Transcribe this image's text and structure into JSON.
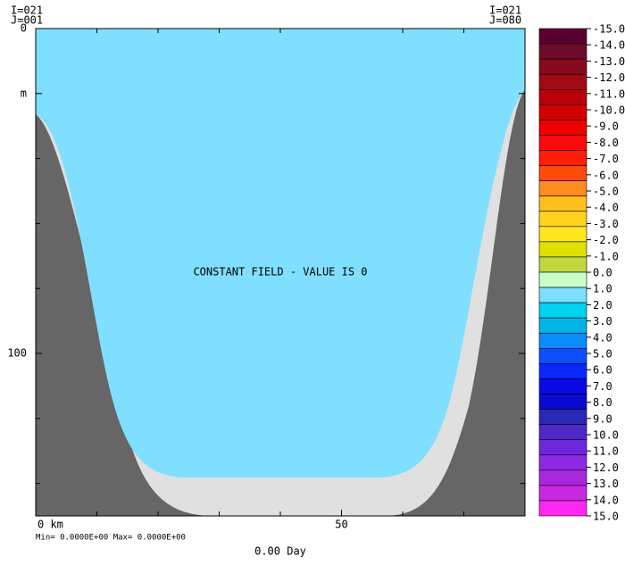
{
  "chart_data": {
    "type": "section",
    "corner_labels": {
      "left": [
        "I=021",
        "J=001"
      ],
      "right": [
        "I=021",
        "J=080"
      ]
    },
    "annotation": "CONSTANT FIELD - VALUE IS 0",
    "stats": "Min= 0.0000E+00  Max= 0.0000E+00",
    "time_label": "0.00 Day",
    "xlim": [
      0,
      80
    ],
    "xticks": [
      {
        "value": 0,
        "label": "0 km"
      },
      50
    ],
    "xminor_ticks": [
      10,
      20,
      30,
      40,
      60,
      70,
      80
    ],
    "ylim": [
      0,
      150
    ],
    "yticks": [
      0,
      {
        "value": 20,
        "label": "m"
      },
      100
    ],
    "yminor_ticks": [
      40,
      60,
      80,
      120,
      140
    ],
    "colorbar": {
      "levels": [
        {
          "value": -15,
          "label": "-15.0"
        },
        {
          "value": -14,
          "label": "-14.0"
        },
        {
          "value": -13,
          "label": "-13.0"
        },
        {
          "value": -12,
          "label": "-12.0"
        },
        {
          "value": -11,
          "label": "-11.0"
        },
        {
          "value": -10,
          "label": "-10.0"
        },
        {
          "value": -9,
          "label": "-9.0"
        },
        {
          "value": -8,
          "label": "-8.0"
        },
        {
          "value": -7,
          "label": "-7.0"
        },
        {
          "value": -6,
          "label": "-6.0"
        },
        {
          "value": -5,
          "label": "-5.0"
        },
        {
          "value": -4,
          "label": "-4.0"
        },
        {
          "value": -3,
          "label": "-3.0"
        },
        {
          "value": -2,
          "label": "-2.0"
        },
        {
          "value": -1,
          "label": "-1.0"
        },
        {
          "value": 0,
          "label": "0.0"
        },
        {
          "value": 1,
          "label": "1.0"
        },
        {
          "value": 2,
          "label": "2.0"
        },
        {
          "value": 3,
          "label": "3.0"
        },
        {
          "value": 4,
          "label": "4.0"
        },
        {
          "value": 5,
          "label": "5.0"
        },
        {
          "value": 6,
          "label": "6.0"
        },
        {
          "value": 7,
          "label": "7.0"
        },
        {
          "value": 8,
          "label": "8.0"
        },
        {
          "value": 9,
          "label": "9.0"
        },
        {
          "value": 10,
          "label": "10.0"
        },
        {
          "value": 11,
          "label": "11.0"
        },
        {
          "value": 12,
          "label": "12.0"
        },
        {
          "value": 13,
          "label": "13.0"
        },
        {
          "value": 14,
          "label": "14.0"
        },
        {
          "value": 15,
          "label": "15.0"
        }
      ],
      "colors": [
        "#5b0033",
        "#6e0a2a",
        "#870a1e",
        "#a00a14",
        "#b8000a",
        "#d20000",
        "#ec0000",
        "#ff0a0a",
        "#ff1e0a",
        "#ff4b0a",
        "#ff8c1e",
        "#ffbe1e",
        "#ffd21e",
        "#ffe61e",
        "#e0e000",
        "#c0d83c",
        "#c8ffc8",
        "#7ddfff",
        "#00d2f0",
        "#00b4e6",
        "#0a8cff",
        "#0a50ff",
        "#0a28ff",
        "#0a0ae6",
        "#0a0ad2",
        "#2828b4",
        "#5028c8",
        "#6e28dc",
        "#8c28e6",
        "#aa28dc",
        "#c828e0",
        "#ff28f0"
      ]
    }
  }
}
